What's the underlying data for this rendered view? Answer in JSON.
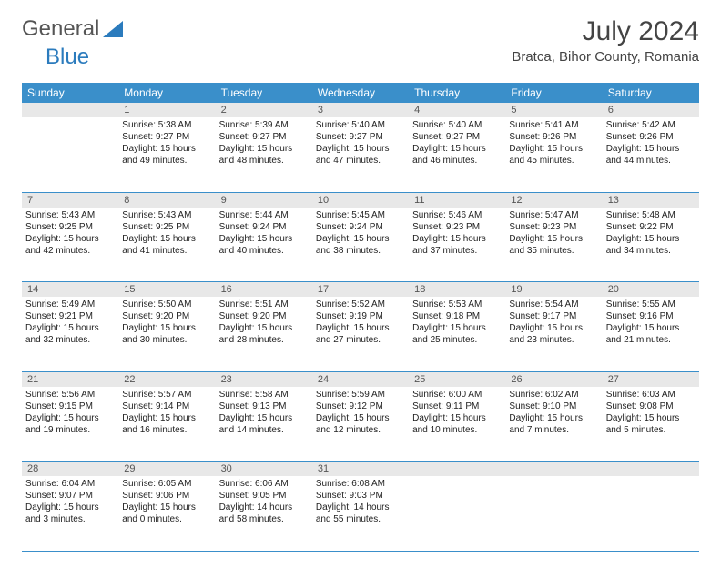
{
  "logo": {
    "text1": "General",
    "text2": "Blue"
  },
  "title": "July 2024",
  "location": "Bratca, Bihor County, Romania",
  "colors": {
    "header_bg": "#3a8fca",
    "header_text": "#ffffff",
    "daynum_bg": "#e8e8e8",
    "border": "#3a8fca",
    "logo_gray": "#555555",
    "logo_blue": "#2b7bbd"
  },
  "weekdays": [
    "Sunday",
    "Monday",
    "Tuesday",
    "Wednesday",
    "Thursday",
    "Friday",
    "Saturday"
  ],
  "weeks": [
    {
      "nums": [
        "",
        "1",
        "2",
        "3",
        "4",
        "5",
        "6"
      ],
      "cells": [
        null,
        {
          "sr": "Sunrise: 5:38 AM",
          "ss": "Sunset: 9:27 PM",
          "d1": "Daylight: 15 hours",
          "d2": "and 49 minutes."
        },
        {
          "sr": "Sunrise: 5:39 AM",
          "ss": "Sunset: 9:27 PM",
          "d1": "Daylight: 15 hours",
          "d2": "and 48 minutes."
        },
        {
          "sr": "Sunrise: 5:40 AM",
          "ss": "Sunset: 9:27 PM",
          "d1": "Daylight: 15 hours",
          "d2": "and 47 minutes."
        },
        {
          "sr": "Sunrise: 5:40 AM",
          "ss": "Sunset: 9:27 PM",
          "d1": "Daylight: 15 hours",
          "d2": "and 46 minutes."
        },
        {
          "sr": "Sunrise: 5:41 AM",
          "ss": "Sunset: 9:26 PM",
          "d1": "Daylight: 15 hours",
          "d2": "and 45 minutes."
        },
        {
          "sr": "Sunrise: 5:42 AM",
          "ss": "Sunset: 9:26 PM",
          "d1": "Daylight: 15 hours",
          "d2": "and 44 minutes."
        }
      ]
    },
    {
      "nums": [
        "7",
        "8",
        "9",
        "10",
        "11",
        "12",
        "13"
      ],
      "cells": [
        {
          "sr": "Sunrise: 5:43 AM",
          "ss": "Sunset: 9:25 PM",
          "d1": "Daylight: 15 hours",
          "d2": "and 42 minutes."
        },
        {
          "sr": "Sunrise: 5:43 AM",
          "ss": "Sunset: 9:25 PM",
          "d1": "Daylight: 15 hours",
          "d2": "and 41 minutes."
        },
        {
          "sr": "Sunrise: 5:44 AM",
          "ss": "Sunset: 9:24 PM",
          "d1": "Daylight: 15 hours",
          "d2": "and 40 minutes."
        },
        {
          "sr": "Sunrise: 5:45 AM",
          "ss": "Sunset: 9:24 PM",
          "d1": "Daylight: 15 hours",
          "d2": "and 38 minutes."
        },
        {
          "sr": "Sunrise: 5:46 AM",
          "ss": "Sunset: 9:23 PM",
          "d1": "Daylight: 15 hours",
          "d2": "and 37 minutes."
        },
        {
          "sr": "Sunrise: 5:47 AM",
          "ss": "Sunset: 9:23 PM",
          "d1": "Daylight: 15 hours",
          "d2": "and 35 minutes."
        },
        {
          "sr": "Sunrise: 5:48 AM",
          "ss": "Sunset: 9:22 PM",
          "d1": "Daylight: 15 hours",
          "d2": "and 34 minutes."
        }
      ]
    },
    {
      "nums": [
        "14",
        "15",
        "16",
        "17",
        "18",
        "19",
        "20"
      ],
      "cells": [
        {
          "sr": "Sunrise: 5:49 AM",
          "ss": "Sunset: 9:21 PM",
          "d1": "Daylight: 15 hours",
          "d2": "and 32 minutes."
        },
        {
          "sr": "Sunrise: 5:50 AM",
          "ss": "Sunset: 9:20 PM",
          "d1": "Daylight: 15 hours",
          "d2": "and 30 minutes."
        },
        {
          "sr": "Sunrise: 5:51 AM",
          "ss": "Sunset: 9:20 PM",
          "d1": "Daylight: 15 hours",
          "d2": "and 28 minutes."
        },
        {
          "sr": "Sunrise: 5:52 AM",
          "ss": "Sunset: 9:19 PM",
          "d1": "Daylight: 15 hours",
          "d2": "and 27 minutes."
        },
        {
          "sr": "Sunrise: 5:53 AM",
          "ss": "Sunset: 9:18 PM",
          "d1": "Daylight: 15 hours",
          "d2": "and 25 minutes."
        },
        {
          "sr": "Sunrise: 5:54 AM",
          "ss": "Sunset: 9:17 PM",
          "d1": "Daylight: 15 hours",
          "d2": "and 23 minutes."
        },
        {
          "sr": "Sunrise: 5:55 AM",
          "ss": "Sunset: 9:16 PM",
          "d1": "Daylight: 15 hours",
          "d2": "and 21 minutes."
        }
      ]
    },
    {
      "nums": [
        "21",
        "22",
        "23",
        "24",
        "25",
        "26",
        "27"
      ],
      "cells": [
        {
          "sr": "Sunrise: 5:56 AM",
          "ss": "Sunset: 9:15 PM",
          "d1": "Daylight: 15 hours",
          "d2": "and 19 minutes."
        },
        {
          "sr": "Sunrise: 5:57 AM",
          "ss": "Sunset: 9:14 PM",
          "d1": "Daylight: 15 hours",
          "d2": "and 16 minutes."
        },
        {
          "sr": "Sunrise: 5:58 AM",
          "ss": "Sunset: 9:13 PM",
          "d1": "Daylight: 15 hours",
          "d2": "and 14 minutes."
        },
        {
          "sr": "Sunrise: 5:59 AM",
          "ss": "Sunset: 9:12 PM",
          "d1": "Daylight: 15 hours",
          "d2": "and 12 minutes."
        },
        {
          "sr": "Sunrise: 6:00 AM",
          "ss": "Sunset: 9:11 PM",
          "d1": "Daylight: 15 hours",
          "d2": "and 10 minutes."
        },
        {
          "sr": "Sunrise: 6:02 AM",
          "ss": "Sunset: 9:10 PM",
          "d1": "Daylight: 15 hours",
          "d2": "and 7 minutes."
        },
        {
          "sr": "Sunrise: 6:03 AM",
          "ss": "Sunset: 9:08 PM",
          "d1": "Daylight: 15 hours",
          "d2": "and 5 minutes."
        }
      ]
    },
    {
      "nums": [
        "28",
        "29",
        "30",
        "31",
        "",
        "",
        ""
      ],
      "cells": [
        {
          "sr": "Sunrise: 6:04 AM",
          "ss": "Sunset: 9:07 PM",
          "d1": "Daylight: 15 hours",
          "d2": "and 3 minutes."
        },
        {
          "sr": "Sunrise: 6:05 AM",
          "ss": "Sunset: 9:06 PM",
          "d1": "Daylight: 15 hours",
          "d2": "and 0 minutes."
        },
        {
          "sr": "Sunrise: 6:06 AM",
          "ss": "Sunset: 9:05 PM",
          "d1": "Daylight: 14 hours",
          "d2": "and 58 minutes."
        },
        {
          "sr": "Sunrise: 6:08 AM",
          "ss": "Sunset: 9:03 PM",
          "d1": "Daylight: 14 hours",
          "d2": "and 55 minutes."
        },
        null,
        null,
        null
      ]
    }
  ]
}
